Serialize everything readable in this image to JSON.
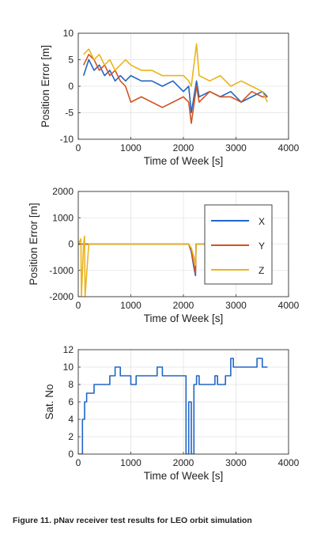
{
  "chart_data": [
    {
      "type": "line",
      "xlabel": "Time of Week [s]",
      "ylabel": "Position Error [m]",
      "xlim": [
        0,
        4000
      ],
      "ylim": [
        -10,
        10
      ],
      "xticks": [
        0,
        1000,
        2000,
        3000,
        4000
      ],
      "yticks": [
        -10,
        -5,
        0,
        5,
        10
      ],
      "x_tick_labels": [
        "0",
        "1000",
        "2000",
        "3000",
        "4000"
      ],
      "y_tick_labels": [
        "-10",
        "-5",
        "0",
        "5",
        "10"
      ],
      "grid": true,
      "series": [
        {
          "name": "X",
          "color": "#2166c5",
          "x": [
            100,
            200,
            300,
            400,
            500,
            600,
            700,
            800,
            900,
            1000,
            1200,
            1400,
            1600,
            1800,
            2000,
            2100,
            2150,
            2250,
            2300,
            2500,
            2700,
            2900,
            3100,
            3300,
            3500,
            3600
          ],
          "y": [
            2,
            5,
            3,
            4,
            2,
            3,
            1,
            2,
            1,
            2,
            1,
            1,
            0,
            1,
            -1,
            0,
            -5,
            1,
            -2,
            -1,
            -2,
            -1,
            -3,
            -2,
            -1,
            -2
          ]
        },
        {
          "name": "Y",
          "color": "#d4531e",
          "x": [
            100,
            200,
            300,
            400,
            500,
            600,
            700,
            800,
            900,
            1000,
            1200,
            1400,
            1600,
            1800,
            2000,
            2100,
            2150,
            2250,
            2300,
            2500,
            2700,
            2900,
            3100,
            3300,
            3500,
            3600
          ],
          "y": [
            4,
            6,
            5,
            3,
            4,
            2,
            3,
            1,
            0,
            -3,
            -2,
            -3,
            -4,
            -3,
            -2,
            -3,
            -7,
            0,
            -3,
            -1,
            -2,
            -2,
            -3,
            -1,
            -2,
            -2
          ]
        },
        {
          "name": "Z",
          "color": "#eab41c",
          "x": [
            100,
            200,
            300,
            400,
            500,
            600,
            700,
            800,
            900,
            1000,
            1200,
            1400,
            1600,
            1800,
            2000,
            2100,
            2150,
            2250,
            2300,
            2500,
            2700,
            2900,
            3100,
            3300,
            3500,
            3600
          ],
          "y": [
            6,
            7,
            5,
            6,
            4,
            5,
            3,
            4,
            5,
            4,
            3,
            3,
            2,
            2,
            2,
            1,
            0,
            8,
            2,
            1,
            2,
            0,
            1,
            0,
            -1,
            -3
          ]
        }
      ]
    },
    {
      "type": "line",
      "xlabel": "Time of Week [s]",
      "ylabel": "Position Error [m]",
      "xlim": [
        0,
        4000
      ],
      "ylim": [
        -2000,
        2000
      ],
      "xticks": [
        0,
        1000,
        2000,
        3000,
        4000
      ],
      "yticks": [
        -2000,
        -1000,
        0,
        1000,
        2000
      ],
      "x_tick_labels": [
        "0",
        "1000",
        "2000",
        "3000",
        "4000"
      ],
      "y_tick_labels": [
        "-2000",
        "-1000",
        "0",
        "1000",
        "2000"
      ],
      "grid": true,
      "legend": {
        "placement": "right",
        "entries": [
          "X",
          "Y",
          "Z"
        ]
      },
      "series": [
        {
          "name": "X",
          "color": "#2166c5",
          "x": [
            0,
            100,
            200,
            2100,
            2150,
            2200,
            2230,
            2240,
            2400,
            3600
          ],
          "y": [
            0,
            0,
            0,
            0,
            -300,
            -900,
            -1200,
            0,
            0,
            0
          ]
        },
        {
          "name": "Y",
          "color": "#d4531e",
          "x": [
            0,
            100,
            200,
            2100,
            2150,
            2200,
            2230,
            2240,
            2400,
            3600
          ],
          "y": [
            0,
            0,
            0,
            0,
            -250,
            -800,
            -1100,
            0,
            0,
            0
          ]
        },
        {
          "name": "Z",
          "color": "#eab41c",
          "x": [
            0,
            50,
            60,
            100,
            120,
            130,
            200,
            2100,
            2150,
            2200,
            2230,
            2240,
            2400,
            3600
          ],
          "y": [
            0,
            200,
            -2000,
            0,
            300,
            -2000,
            0,
            0,
            -150,
            -500,
            -800,
            0,
            0,
            0
          ]
        }
      ]
    },
    {
      "type": "line",
      "xlabel": "Time of Week [s]",
      "ylabel": "Sat. No",
      "xlim": [
        0,
        4000
      ],
      "ylim": [
        0,
        12
      ],
      "xticks": [
        0,
        1000,
        2000,
        3000,
        4000
      ],
      "yticks": [
        0,
        2,
        4,
        6,
        8,
        10,
        12
      ],
      "x_tick_labels": [
        "0",
        "1000",
        "2000",
        "3000",
        "4000"
      ],
      "y_tick_labels": [
        "0",
        "2",
        "4",
        "6",
        "8",
        "10",
        "12"
      ],
      "grid": true,
      "series": [
        {
          "color": "#2166c5",
          "x": [
            0,
            80,
            80,
            120,
            120,
            160,
            160,
            200,
            200,
            300,
            300,
            400,
            400,
            600,
            600,
            700,
            700,
            800,
            800,
            1000,
            1000,
            1100,
            1100,
            1500,
            1500,
            1600,
            1600,
            1700,
            1700,
            2050,
            2050,
            2100,
            2100,
            2150,
            2150,
            2200,
            2200,
            2250,
            2250,
            2300,
            2300,
            2600,
            2600,
            2650,
            2650,
            2800,
            2800,
            2900,
            2900,
            2950,
            2950,
            3400,
            3400,
            3500,
            3500,
            3600
          ],
          "y": [
            0,
            0,
            4,
            4,
            6,
            6,
            7,
            7,
            7,
            7,
            8,
            8,
            8,
            8,
            9,
            9,
            10,
            10,
            9,
            9,
            8,
            8,
            9,
            9,
            10,
            10,
            9,
            9,
            9,
            9,
            0,
            0,
            6,
            6,
            0,
            0,
            8,
            8,
            9,
            9,
            8,
            8,
            9,
            9,
            8,
            8,
            9,
            9,
            11,
            11,
            10,
            10,
            11,
            11,
            10,
            10
          ]
        }
      ]
    }
  ],
  "caption": "Figure 11. pNav receiver test results for LEO orbit simulation"
}
